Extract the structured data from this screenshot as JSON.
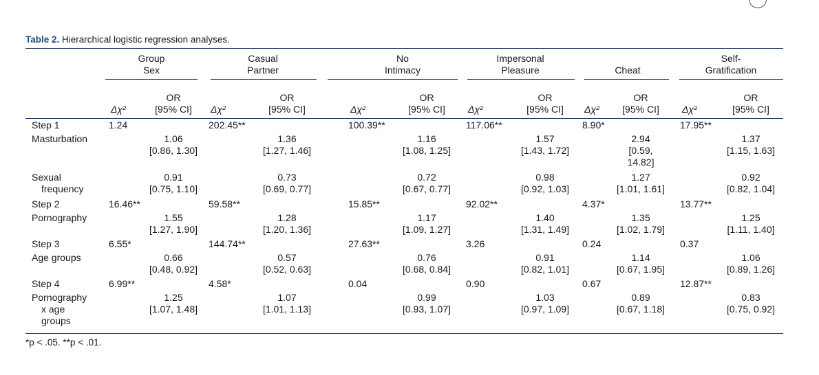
{
  "caption": {
    "label": "Table 2.",
    "text": " Hierarchical logistic regression analyses."
  },
  "groups": [
    [
      "Group",
      "Sex"
    ],
    [
      "Casual",
      "Partner"
    ],
    [
      "No",
      "Intimacy"
    ],
    [
      "Impersonal",
      "Pleasure"
    ],
    [
      "",
      "Cheat"
    ],
    [
      "Self-",
      "Gratification"
    ]
  ],
  "subheaders": {
    "delta_chi": "Δχ²",
    "or_line1": "OR",
    "or_line2": "[95% CI]"
  },
  "rows": [
    {
      "label": [
        "Step 1"
      ],
      "chi": [
        "1.24",
        "202.45**",
        "100.39**",
        "117.06**",
        "8.90*",
        "17.95**"
      ]
    },
    {
      "label": [
        "Masturbation"
      ],
      "or": [
        [
          "1.06",
          "[0.86, 1.30]"
        ],
        [
          "1.36",
          "[1.27, 1.46]"
        ],
        [
          "1.16",
          "[1.08, 1.25]"
        ],
        [
          "1.57",
          "[1.43, 1.72]"
        ],
        [
          "2.94",
          "[0.59,",
          "14.82]"
        ],
        [
          "1.37",
          "[1.15, 1.63]"
        ]
      ]
    },
    {
      "label": [
        "Sexual",
        "frequency"
      ],
      "or": [
        [
          "0.91",
          "[0.75, 1.10]"
        ],
        [
          "0.73",
          "[0.69, 0.77]"
        ],
        [
          "0.72",
          "[0.67, 0.77]"
        ],
        [
          "0.98",
          "[0.92, 1.03]"
        ],
        [
          "1.27",
          "[1.01, 1.61]"
        ],
        [
          "0.92",
          "[0.82, 1.04]"
        ]
      ]
    },
    {
      "label": [
        "Step 2"
      ],
      "chi": [
        "16.46**",
        "59.58**",
        "15.85**",
        "92.02**",
        "4.37*",
        "13.77**"
      ]
    },
    {
      "label": [
        "Pornography"
      ],
      "or": [
        [
          "1.55",
          "[1.27, 1.90]"
        ],
        [
          "1.28",
          "[1.20, 1.36]"
        ],
        [
          "1.17",
          "[1.09, 1.27]"
        ],
        [
          "1.40",
          "[1.31, 1.49]"
        ],
        [
          "1.35",
          "[1.02, 1.79]"
        ],
        [
          "1.25",
          "[1.11, 1.40]"
        ]
      ]
    },
    {
      "label": [
        "Step 3"
      ],
      "chi": [
        "6.55*",
        "144.74**",
        "27.63**",
        "3.26",
        "0.24",
        "0.37"
      ]
    },
    {
      "label": [
        "Age groups"
      ],
      "or": [
        [
          "0.66",
          "[0.48, 0.92]"
        ],
        [
          "0.57",
          "[0.52, 0.63]"
        ],
        [
          "0.76",
          "[0.68, 0.84]"
        ],
        [
          "0.91",
          "[0.82, 1.01]"
        ],
        [
          "1.14",
          "[0.67, 1.95]"
        ],
        [
          "1.06",
          "[0.89, 1.26]"
        ]
      ]
    },
    {
      "label": [
        "Step 4"
      ],
      "chi": [
        "6.99**",
        "4.58*",
        "0.04",
        "0.90",
        "0.67",
        "12.87**"
      ]
    },
    {
      "label": [
        "Pornography",
        "x age",
        "groups"
      ],
      "or": [
        [
          "1.25",
          "[1.07, 1.48]"
        ],
        [
          "1.07",
          "[1.01, 1.13]"
        ],
        [
          "0.99",
          "[0.93, 1.07]"
        ],
        [
          "1.03",
          "[0.97, 1.09]"
        ],
        [
          "0.89",
          "[0.67, 1.18]"
        ],
        [
          "0.83",
          "[0.75, 0.92]"
        ]
      ]
    }
  ],
  "footnote": "*p < .05. **p < .01."
}
